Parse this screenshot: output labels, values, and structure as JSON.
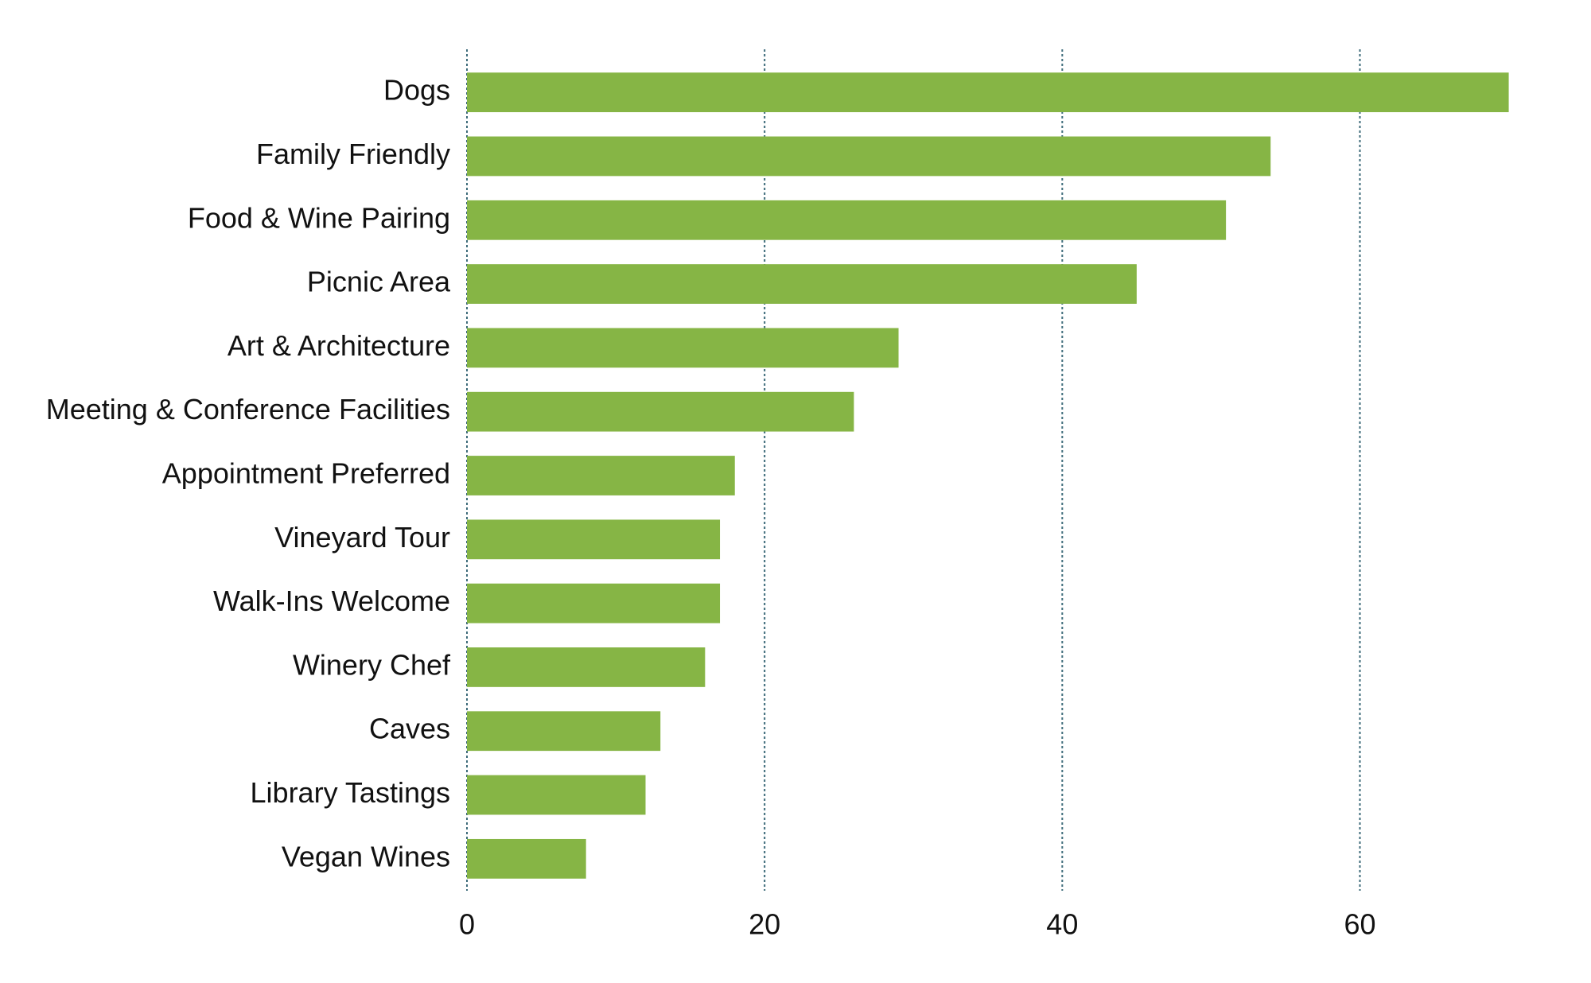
{
  "chart_data": {
    "type": "bar",
    "orientation": "horizontal",
    "categories": [
      "Dogs",
      "Family Friendly",
      "Food & Wine Pairing",
      "Picnic Area",
      "Art & Architecture",
      "Meeting & Conference Facilities",
      "Appointment Preferred",
      "Vineyard Tour",
      "Walk-Ins Welcome",
      "Winery Chef",
      "Caves",
      "Library Tastings",
      "Vegan Wines"
    ],
    "values": [
      70,
      54,
      51,
      45,
      29,
      26,
      18,
      17,
      17,
      16,
      13,
      12,
      8
    ],
    "color": "#86b545",
    "xlim": [
      0,
      72
    ],
    "xticks": [
      0,
      20,
      40,
      60
    ],
    "grid": true,
    "grid_color": "#3d6b7a"
  }
}
